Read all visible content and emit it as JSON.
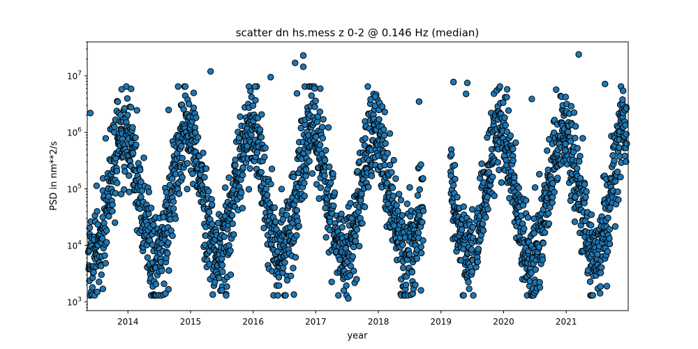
{
  "chart_data": {
    "type": "scatter",
    "title": "scatter dn hs.mess z 0-2 @ 0.146 Hz (median)",
    "xlabel": "year",
    "ylabel": "PSD in nm**2/s",
    "xscale": "linear",
    "yscale": "log",
    "xlim": [
      2013.35,
      2021.99
    ],
    "ylim": [
      700,
      40000000
    ],
    "x_ticks": [
      2014,
      2015,
      2016,
      2017,
      2018,
      2019,
      2020,
      2021
    ],
    "x_tick_labels": [
      "2014",
      "2015",
      "2016",
      "2017",
      "2018",
      "2019",
      "2020",
      "2021"
    ],
    "y_ticks": [
      1000,
      10000,
      100000,
      1000000,
      10000000
    ],
    "y_tick_labels": [
      {
        "base": "10",
        "exp": "3"
      },
      {
        "base": "10",
        "exp": "4"
      },
      {
        "base": "10",
        "exp": "5"
      },
      {
        "base": "10",
        "exp": "6"
      },
      {
        "base": "10",
        "exp": "7"
      }
    ],
    "marker_color": "#1f77b4",
    "marker_edge_color": "#000000",
    "grid": false,
    "legend": "none",
    "annual_cycle": {
      "summer_low_psd": 6000,
      "winter_high_psd": 1000000,
      "peak_month_fraction": 0.95,
      "gaps": [
        [
          2018.72,
          2019.15
        ],
        [
          2019.52,
          2019.56
        ]
      ]
    },
    "points": [
      {
        "x": 2013.4,
        "y": 2200000
      },
      {
        "x": 2015.32,
        "y": 12000000
      },
      {
        "x": 2016.28,
        "y": 9500000
      },
      {
        "x": 2016.67,
        "y": 17000000
      },
      {
        "x": 2016.8,
        "y": 23000000
      },
      {
        "x": 2016.8,
        "y": 14500000
      },
      {
        "x": 2017.52,
        "y": 1150
      },
      {
        "x": 2019.42,
        "y": 7500000
      },
      {
        "x": 2021.2,
        "y": 24000000
      },
      {
        "x": 2021.62,
        "y": 7200000
      },
      {
        "x": 2013.9,
        "y": 5800000
      },
      {
        "x": 2014.05,
        "y": 5900000
      },
      {
        "x": 2015.05,
        "y": 5000000
      },
      {
        "x": 2016.03,
        "y": 6500000
      },
      {
        "x": 2016.98,
        "y": 6000000
      },
      {
        "x": 2017.95,
        "y": 4300000
      },
      {
        "x": 2019.2,
        "y": 7800000
      },
      {
        "x": 2019.4,
        "y": 4800000
      },
      {
        "x": 2020.05,
        "y": 4200000
      },
      {
        "x": 2020.45,
        "y": 3900000
      },
      {
        "x": 2021.08,
        "y": 2900000
      },
      {
        "x": 2021.9,
        "y": 3800000
      },
      {
        "x": 2018.65,
        "y": 3500000
      },
      {
        "x": 2016.7,
        "y": 4900000
      },
      {
        "x": 2014.65,
        "y": 2500000
      },
      {
        "x": 2014.6,
        "y": 1400
      },
      {
        "x": 2015.5,
        "y": 1600
      },
      {
        "x": 2016.65,
        "y": 1350
      },
      {
        "x": 2018.68,
        "y": 1600
      },
      {
        "x": 2019.45,
        "y": 1700
      },
      {
        "x": 2020.58,
        "y": 1800
      },
      {
        "x": 2021.65,
        "y": 1900
      },
      {
        "x": 2013.6,
        "y": 1700
      }
    ]
  }
}
